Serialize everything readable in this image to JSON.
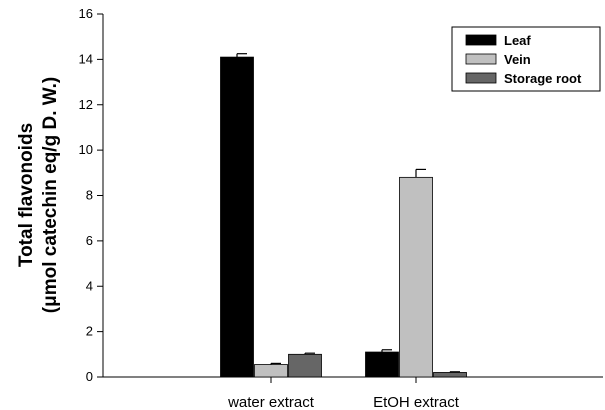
{
  "chart_data": {
    "type": "bar",
    "categories": [
      "water extract",
      "EtOH extract"
    ],
    "series": [
      {
        "name": "Leaf",
        "color": "#000000",
        "values": [
          14.1,
          1.1
        ],
        "errors": [
          0.15,
          0.1
        ]
      },
      {
        "name": "Vein",
        "color": "#c0c0c0",
        "values": [
          0.55,
          8.8
        ],
        "errors": [
          0.05,
          0.35
        ]
      },
      {
        "name": "Storage root",
        "color": "#666666",
        "values": [
          1.0,
          0.2
        ],
        "errors": [
          0.05,
          0.03
        ]
      }
    ],
    "title": "",
    "xlabel": "",
    "ylabel_line1": "Total flavonoids",
    "ylabel_line2": "(μmol catechin eq/g D. W.)",
    "ylim": [
      0,
      16
    ],
    "yticks": [
      0,
      2,
      4,
      6,
      8,
      10,
      12,
      14,
      16
    ],
    "grid": false,
    "legend_position": "top-right"
  }
}
